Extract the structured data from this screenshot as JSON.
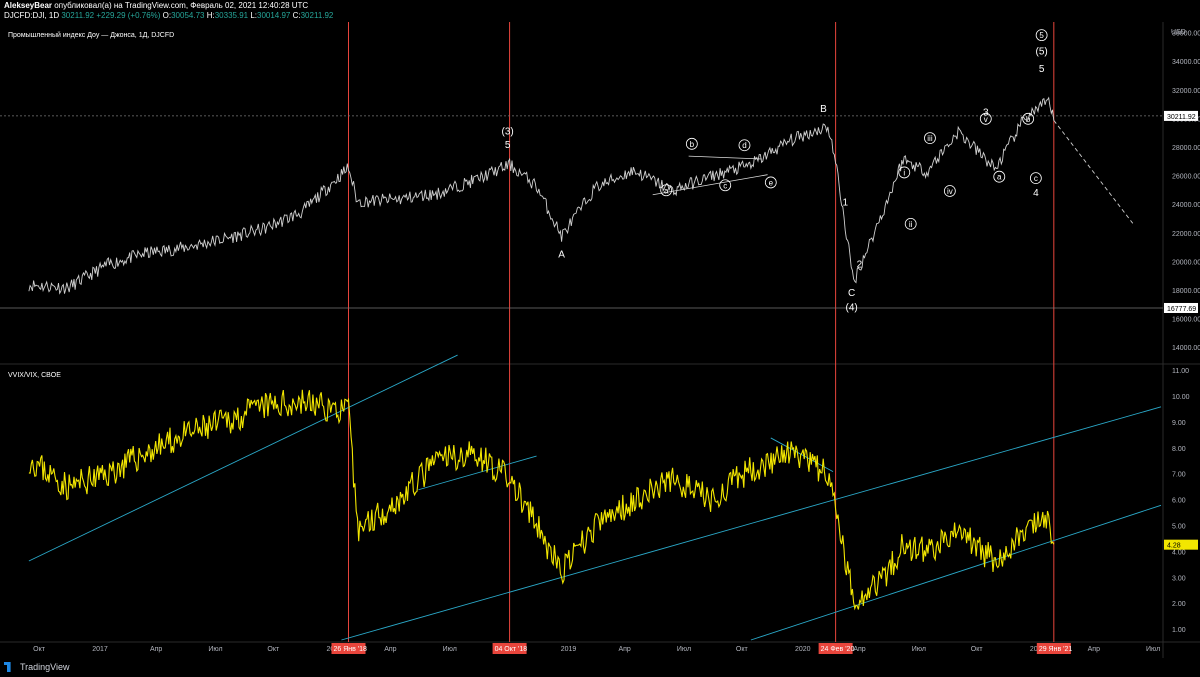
{
  "header": {
    "author": "AlekseyBear",
    "published": "опубликовал(а) на TradingView.com, Февраль 02, 2021 12:40:28 UTC",
    "symbol": "DJCFD:DJI, 1D",
    "last": "30211.92",
    "change": "+229.29 (+0.76%)",
    "o_label": "O:",
    "o": "30054.73",
    "h_label": "H:",
    "h": "30335.91",
    "l_label": "L:",
    "l": "30014.97",
    "c_label": "C:",
    "c": "30211.92"
  },
  "footer": {
    "brand": "TradingView"
  },
  "colors": {
    "background": "#000000",
    "price_line": "#d0d0d0",
    "vix_line": "#f2e600",
    "trendline": "#2aa8c8",
    "vertical_marker": "#e8453c",
    "dashed_projection": "#cfcfcf",
    "last_price_badge": "#ffffff",
    "vix_badge": "#f2e600"
  },
  "chart_data": [
    {
      "type": "line",
      "title": "Промышленный индекс Доу — Джонса, 1Д, DJCFD",
      "y_axis_title": "USD",
      "ylim": [
        13000,
        36500
      ],
      "y_ticks": [
        "14000.00",
        "16000.00",
        "18000.00",
        "20000.00",
        "22000.00",
        "24000.00",
        "26000.00",
        "28000.00",
        "30000.00",
        "32000.00",
        "34000.00",
        "36000.00"
      ],
      "last_price_label": "30211.92",
      "low_price_label": "16777.69",
      "x": [
        "2016-09",
        "2016-11",
        "2017-01",
        "2017-03",
        "2017-05",
        "2017-07",
        "2017-09",
        "2017-11",
        "2018-01-26",
        "2018-02-09",
        "2018-04",
        "2018-06",
        "2018-08",
        "2018-10-04",
        "2018-11",
        "2018-12-24",
        "2019-02",
        "2019-04",
        "2019-06",
        "2019-08",
        "2019-10",
        "2019-12",
        "2020-02-12",
        "2020-02-24",
        "2020-03-23",
        "2020-05",
        "2020-06-08",
        "2020-07",
        "2020-09-02",
        "2020-10-30",
        "2020-12",
        "2021-01-21",
        "2021-01-29"
      ],
      "series": [
        {
          "values": [
            18400,
            18200,
            19800,
            20600,
            21000,
            21600,
            22300,
            23500,
            26600,
            24200,
            24400,
            24800,
            25800,
            26800,
            25300,
            21800,
            25200,
            26400,
            25000,
            26000,
            26800,
            28500,
            29500,
            27000,
            18600,
            24300,
            27200,
            26300,
            29100,
            26500,
            30100,
            31200,
            29900
          ]
        }
      ],
      "wave_labels": [
        "(3)",
        "5",
        "A",
        "a",
        "b",
        "c",
        "d",
        "e",
        "B",
        "1",
        "2",
        "C",
        "(4)",
        "i",
        "ii",
        "iii",
        "iv",
        "v",
        "3",
        "a",
        "b",
        "c",
        "4",
        "5",
        "(5)",
        "5"
      ]
    },
    {
      "type": "line",
      "title": "VVIX/VIX, CBOE",
      "ylim": [
        0.6,
        11.1
      ],
      "y_ticks": [
        "1.00",
        "2.00",
        "3.00",
        "4.00",
        "5.00",
        "6.00",
        "7.00",
        "8.00",
        "9.00",
        "10.00",
        "11.00"
      ],
      "last_value_label": "4.28",
      "x": [
        "2016-09",
        "2016-11",
        "2017-01",
        "2017-03",
        "2017-05",
        "2017-07",
        "2017-09",
        "2017-11",
        "2018-01-26",
        "2018-02-09",
        "2018-04",
        "2018-06",
        "2018-08",
        "2018-10-04",
        "2018-11",
        "2018-12-24",
        "2019-02",
        "2019-04",
        "2019-06",
        "2019-08",
        "2019-10",
        "2019-12",
        "2020-02-12",
        "2020-02-24",
        "2020-03-23",
        "2020-05",
        "2020-06-08",
        "2020-07",
        "2020-09-02",
        "2020-10-30",
        "2020-12",
        "2021-01-21",
        "2021-01-29"
      ],
      "series": [
        {
          "values": [
            7.6,
            6.5,
            7.0,
            7.8,
            8.5,
            9.0,
            9.6,
            9.8,
            9.4,
            4.9,
            6.0,
            7.6,
            7.8,
            6.8,
            5.0,
            3.2,
            5.0,
            6.0,
            6.8,
            6.0,
            7.2,
            7.8,
            7.0,
            5.6,
            2.1,
            3.2,
            4.3,
            4.0,
            4.8,
            3.6,
            4.8,
            5.2,
            4.3
          ]
        }
      ]
    }
  ],
  "x_axis": {
    "ticks": [
      "Окт",
      "2017",
      "Апр",
      "Июл",
      "Окт",
      "20",
      "Апр",
      "Июл",
      "2019",
      "Апр",
      "Июл",
      "Окт",
      "2020",
      "Апр",
      "Июл",
      "Окт",
      "20",
      "Апр",
      "Июл"
    ],
    "highlighted": [
      "26 Янв '18",
      "04 Окт '18",
      "24 Фев '20",
      "29 Янв '21"
    ]
  }
}
